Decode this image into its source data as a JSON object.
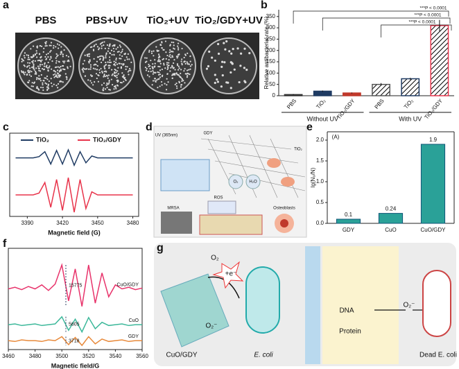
{
  "panel_letters": [
    "a",
    "b",
    "c",
    "d",
    "e",
    "f",
    "g"
  ],
  "panels": {
    "a": {
      "labels": [
        "PBS",
        "PBS+UV",
        "TiO₂+UV",
        "TiO₂/GDY+UV"
      ]
    },
    "d": {
      "labels": [
        "UV (365nm)",
        "GDY",
        "TiO₂",
        "O₂",
        "H₂O",
        "ROS",
        "MRSA",
        "Osteoblasts"
      ]
    },
    "g": {
      "labels": [
        "O₂",
        "+e⁻",
        "O₂⁻",
        "CuO/GDY",
        "E. coli",
        "DNA",
        "Protein",
        "O₂⁻",
        "Dead E. coli"
      ]
    }
  },
  "chart_data": [
    {
      "type": "bar",
      "ylabel": "Relative antibacterial rate (%)",
      "categories": [
        "PBS",
        "TiO₂",
        "TiO₂/GDY",
        "PBS",
        "TiO₂",
        "TiO₂/GDY"
      ],
      "values": [
        5,
        20,
        12,
        50,
        75,
        310
      ],
      "errors": [
        2,
        3,
        2,
        6,
        4,
        25
      ],
      "colors": [
        "#333333",
        "#1f3b63",
        "#c0392b",
        "#555555",
        "#1f3b63",
        "#e8334a"
      ],
      "hatched": [
        false,
        false,
        false,
        true,
        true,
        true
      ],
      "groups": [
        "Without UV",
        "With UV"
      ],
      "annotations": [
        "***P < 0.0001",
        "***P < 0.0001",
        "***P < 0.0001"
      ],
      "ylim": [
        0,
        380
      ],
      "yticks": [
        0,
        50,
        100,
        150,
        200,
        250,
        300,
        350
      ]
    },
    {
      "type": "line",
      "xlabel": "Magnetic field (G)",
      "xlim": [
        3375,
        3485
      ],
      "xticks": [
        3390,
        3420,
        3450,
        3480
      ],
      "x": [
        3380,
        3385,
        3390,
        3395,
        3400,
        3405,
        3410,
        3415,
        3420,
        3425,
        3430,
        3435,
        3440,
        3445,
        3450,
        3455,
        3460,
        3465,
        3470,
        3475,
        3480
      ],
      "series": [
        {
          "name": "TiO₂",
          "color": "#1f3b63",
          "values": [
            10,
            10,
            10,
            10,
            10.2,
            11,
            9,
            11.2,
            9,
            11.3,
            8.8,
            11,
            9.2,
            10.3,
            10,
            10,
            10,
            10,
            10,
            10,
            10
          ]
        },
        {
          "name": "TiO₂/GDY",
          "color": "#e8334a",
          "values": [
            4,
            4,
            4,
            4,
            4.3,
            6,
            2,
            6.5,
            1.5,
            6.8,
            1.2,
            6.5,
            1.8,
            4.5,
            4,
            4,
            4,
            4,
            4,
            4,
            4
          ]
        }
      ]
    },
    {
      "type": "bar",
      "ylabel": "lg(N₀/N)",
      "note": "(A)",
      "categories": [
        "GDY",
        "CuO",
        "CuO/GDY"
      ],
      "values": [
        0.1,
        0.24,
        1.9
      ],
      "color": "#2aa198",
      "ylim": [
        0,
        2.2
      ],
      "yticks": [
        {
          "value": 0,
          "label": "0.0"
        },
        0.5,
        {
          "value": 1,
          "label": "1.0"
        },
        1.5,
        {
          "value": 2,
          "label": "2.0"
        }
      ]
    },
    {
      "type": "line",
      "xlabel": "Magnetic field/G",
      "xlim": [
        3460,
        3560
      ],
      "xticks": [
        3460,
        3480,
        3500,
        3520,
        3540,
        3560
      ],
      "x": [
        3460,
        3465,
        3470,
        3475,
        3480,
        3485,
        3490,
        3495,
        3500,
        3505,
        3510,
        3515,
        3520,
        3525,
        3530,
        3535,
        3540,
        3545,
        3550,
        3555,
        3560
      ],
      "annotations": [
        15775,
        5605,
        3718
      ],
      "series": [
        {
          "name": "CuO/GDY",
          "color": "#e8336b",
          "values": [
            8,
            8.2,
            7.9,
            8.3,
            8,
            8.5,
            7.8,
            8.6,
            11,
            6.5,
            10.5,
            5.8,
            11,
            6.2,
            10,
            7,
            8.5,
            8,
            8.2,
            7.9,
            8.1
          ]
        },
        {
          "name": "CuO",
          "color": "#3cb89a",
          "values": [
            3.5,
            3.6,
            3.4,
            3.5,
            3.6,
            3.4,
            3.5,
            3.6,
            4.5,
            2.8,
            4.2,
            2.6,
            4.4,
            3,
            3.8,
            3.4,
            3.5,
            3.6,
            3.4,
            3.5,
            3.5
          ]
        },
        {
          "name": "GDY",
          "color": "#e8893a",
          "values": [
            1.5,
            1.4,
            1.6,
            1.5,
            1.5,
            1.4,
            1.6,
            1.5,
            2.0,
            1.0,
            1.9,
            0.9,
            2.0,
            1.1,
            1.7,
            1.4,
            1.5,
            1.6,
            1.4,
            1.5,
            1.5
          ]
        }
      ]
    }
  ]
}
